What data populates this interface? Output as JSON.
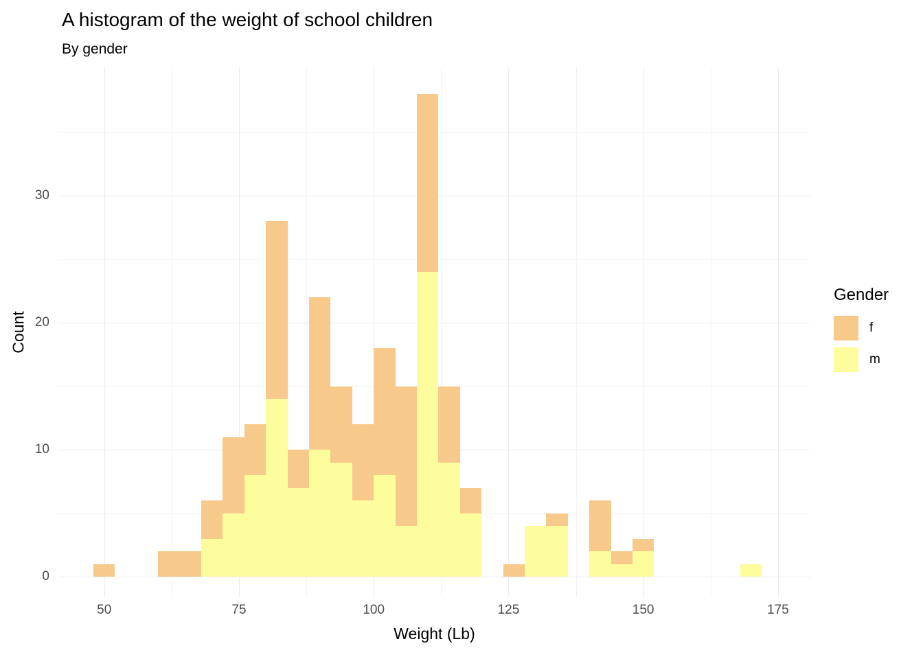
{
  "chart_data": {
    "type": "bar",
    "subtype": "stacked-histogram",
    "title": "A histogram of the weight of school children",
    "subtitle": "By gender",
    "xlabel": "Weight (Lb)",
    "ylabel": "Count",
    "xlim": [
      41.5,
      181
    ],
    "ylim": [
      0,
      40
    ],
    "x_ticks": [
      50,
      75,
      100,
      125,
      150,
      175
    ],
    "y_ticks": [
      0,
      10,
      20,
      30
    ],
    "x_minor": [
      62.5,
      87.5,
      112.5,
      137.5,
      162.5
    ],
    "y_minor": [
      5,
      15,
      25,
      35
    ],
    "grid": true,
    "binwidth": 4,
    "legend": {
      "title": "Gender",
      "position": "right",
      "entries": [
        {
          "label": "f",
          "color": "#F7C98B"
        },
        {
          "label": "m",
          "color": "#FDFD9D"
        }
      ]
    },
    "series_order_bottom_to_top": [
      "m",
      "f"
    ],
    "bins": [
      {
        "x0": 48,
        "x1": 52,
        "f": 1,
        "m": 0
      },
      {
        "x0": 60,
        "x1": 64,
        "f": 2,
        "m": 0
      },
      {
        "x0": 64,
        "x1": 68,
        "f": 2,
        "m": 0
      },
      {
        "x0": 68,
        "x1": 72,
        "f": 3,
        "m": 3
      },
      {
        "x0": 72,
        "x1": 76,
        "f": 6,
        "m": 5
      },
      {
        "x0": 76,
        "x1": 80,
        "f": 4,
        "m": 8
      },
      {
        "x0": 80,
        "x1": 84,
        "f": 14,
        "m": 14
      },
      {
        "x0": 84,
        "x1": 88,
        "f": 3,
        "m": 7
      },
      {
        "x0": 88,
        "x1": 92,
        "f": 12,
        "m": 10
      },
      {
        "x0": 92,
        "x1": 96,
        "f": 6,
        "m": 9
      },
      {
        "x0": 96,
        "x1": 100,
        "f": 6,
        "m": 6
      },
      {
        "x0": 100,
        "x1": 104,
        "f": 10,
        "m": 8
      },
      {
        "x0": 104,
        "x1": 108,
        "f": 11,
        "m": 4
      },
      {
        "x0": 108,
        "x1": 112,
        "f": 14,
        "m": 24
      },
      {
        "x0": 112,
        "x1": 116,
        "f": 6,
        "m": 9
      },
      {
        "x0": 116,
        "x1": 120,
        "f": 2,
        "m": 5
      },
      {
        "x0": 124,
        "x1": 128,
        "f": 1,
        "m": 0
      },
      {
        "x0": 128,
        "x1": 132,
        "f": 0,
        "m": 4
      },
      {
        "x0": 132,
        "x1": 136,
        "f": 1,
        "m": 4
      },
      {
        "x0": 140,
        "x1": 144,
        "f": 4,
        "m": 2
      },
      {
        "x0": 144,
        "x1": 148,
        "f": 1,
        "m": 1
      },
      {
        "x0": 148,
        "x1": 152,
        "f": 1,
        "m": 2
      },
      {
        "x0": 168,
        "x1": 172,
        "f": 0,
        "m": 1
      }
    ]
  }
}
